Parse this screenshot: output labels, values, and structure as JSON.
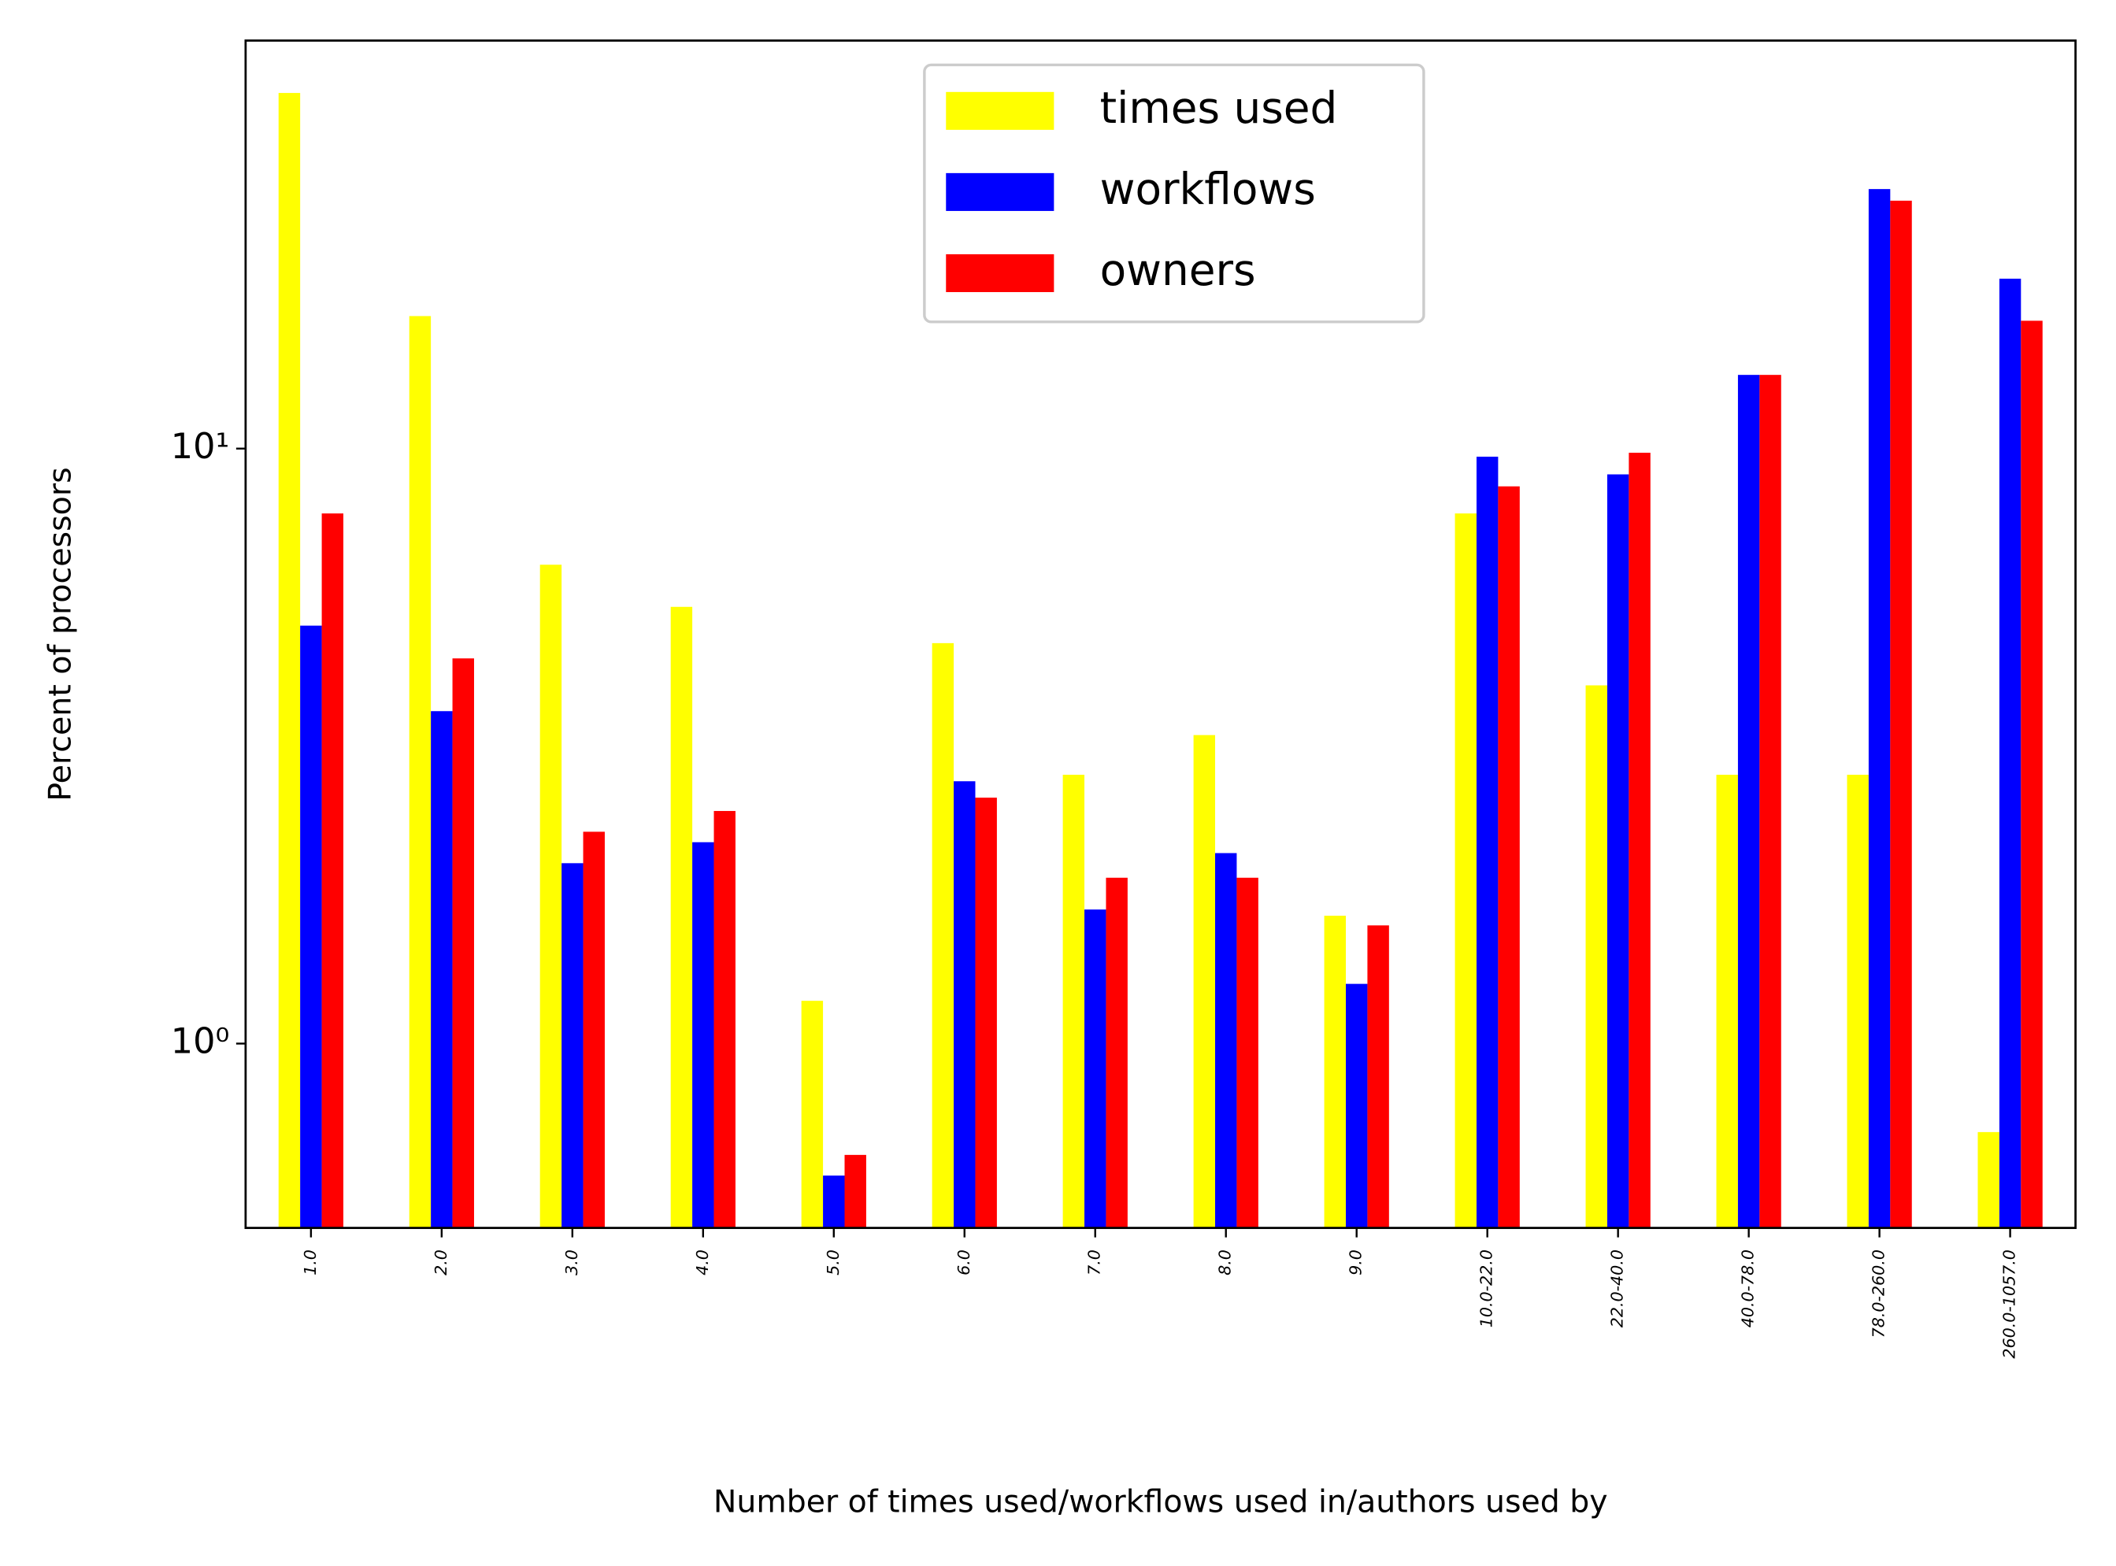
{
  "chart_data": {
    "type": "bar",
    "xlabel": "Number of times used/workflows used in/authors used by",
    "ylabel": "Percent of processors",
    "categories": [
      "1.0",
      "2.0",
      "3.0",
      "4.0",
      "5.0",
      "6.0",
      "7.0",
      "8.0",
      "9.0",
      "10.0-22.0",
      "22.0-40.0",
      "40.0-78.0",
      "78.0-260.0",
      "260.0-1057.0"
    ],
    "series": [
      {
        "name": "times used",
        "color": "#ffff00",
        "values": [
          39.6,
          16.7,
          6.38,
          5.42,
          1.18,
          4.71,
          2.83,
          3.3,
          1.64,
          7.78,
          4.0,
          2.83,
          2.83,
          0.71
        ]
      },
      {
        "name": "workflows",
        "color": "#0000ff",
        "values": [
          5.04,
          3.62,
          2.01,
          2.18,
          0.6,
          2.76,
          1.68,
          2.09,
          1.26,
          9.69,
          9.05,
          13.3,
          27.3,
          19.3
        ]
      },
      {
        "name": "owners",
        "color": "#ff0000",
        "values": [
          7.78,
          4.44,
          2.27,
          2.46,
          0.65,
          2.59,
          1.9,
          1.9,
          1.58,
          8.64,
          9.84,
          13.3,
          26.1,
          16.4
        ]
      }
    ],
    "ylim": [
      0.49,
      48.5
    ],
    "yticks": [
      {
        "value": 1,
        "label": "10⁰"
      },
      {
        "value": 10,
        "label": "10¹"
      }
    ],
    "log_y": true,
    "legend": "upper center"
  }
}
